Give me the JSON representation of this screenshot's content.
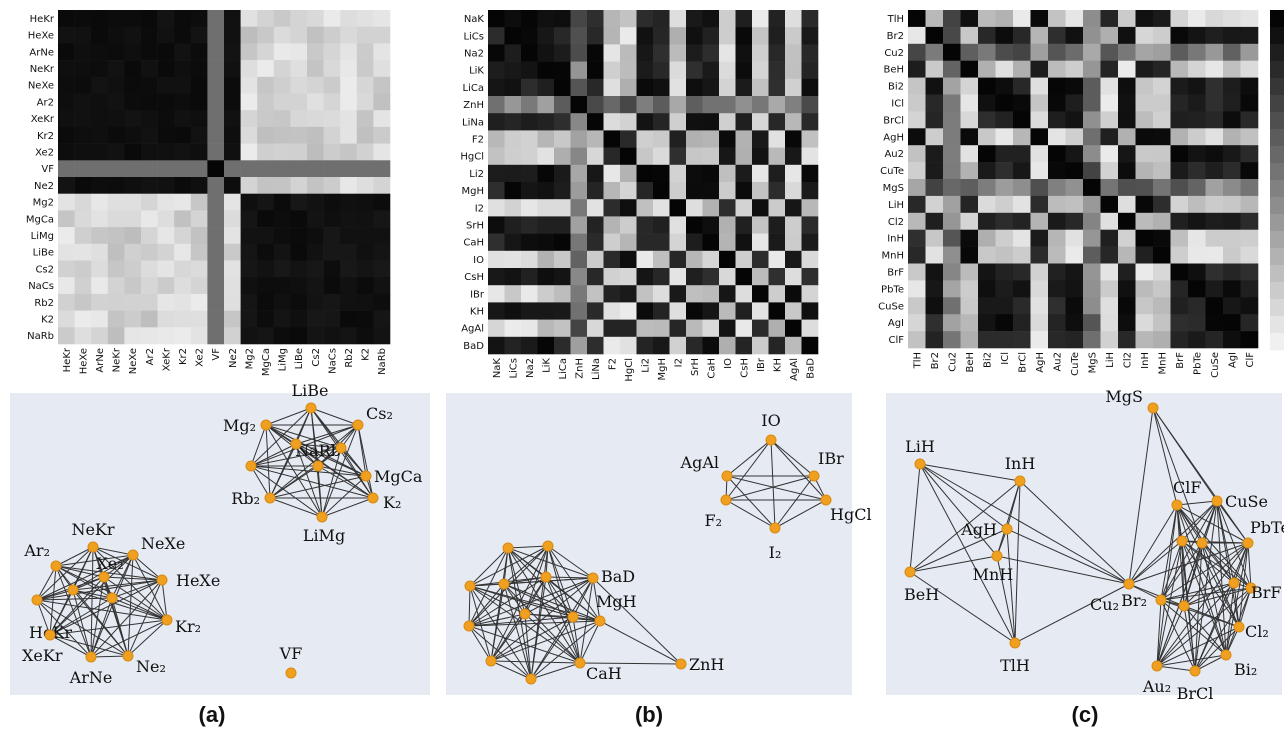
{
  "colors": {
    "panel_bg": "#e6eaf3",
    "node_fill": "#f0a020",
    "node_stroke": "#d98a10",
    "edge": "#333333",
    "cell_dark": "#050505",
    "cell_light": "#f0f0f0"
  },
  "panel_labels": [
    "(a)",
    "(b)",
    "(c)"
  ],
  "chart_data": [
    {
      "type": "heatmap",
      "panel": "(a)",
      "labels": [
        "HeKr",
        "HeXe",
        "ArNe",
        "NeKr",
        "NeXe",
        "Ar2",
        "XeKr",
        "Kr2",
        "Xe2",
        "VF",
        "Ne2",
        "Mg2",
        "MgCa",
        "LiMg",
        "LiBe",
        "Cs2",
        "NaCs",
        "Rb2",
        "K2",
        "NaRb"
      ],
      "clusters": [
        {
          "members": [
            "HeKr",
            "HeXe",
            "ArNe",
            "NeKr",
            "NeXe",
            "Ar2",
            "XeKr",
            "Kr2",
            "Xe2",
            "Ne2"
          ],
          "within": 0.03,
          "vs": {
            "c2": 0.85
          }
        },
        {
          "members": [
            "Mg2",
            "MgCa",
            "LiMg",
            "LiBe",
            "Cs2",
            "NaCs",
            "Rb2",
            "K2",
            "NaRb"
          ],
          "within": 0.05
        }
      ],
      "odd_one": {
        "label": "VF",
        "cross": 0.45,
        "self": 0.0
      },
      "colorscale": "gray"
    },
    {
      "type": "heatmap",
      "panel": "(b)",
      "labels": [
        "NaK",
        "LiCs",
        "Na2",
        "LiK",
        "LiCa",
        "ZnH",
        "LiNa",
        "F2",
        "HgCl",
        "Li2",
        "MgH",
        "I2",
        "SrH",
        "CaH",
        "IO",
        "CsH",
        "IBr",
        "KH",
        "AgAl",
        "BaD"
      ],
      "group_a": [
        "NaK",
        "LiCs",
        "Na2",
        "LiK",
        "LiCa",
        "LiNa",
        "Li2",
        "MgH",
        "SrH",
        "CaH",
        "CsH",
        "KH",
        "BaD"
      ],
      "group_b": [
        "F2",
        "HgCl",
        "I2",
        "IO",
        "IBr",
        "AgAl"
      ],
      "mid": [
        "ZnH"
      ],
      "colorscale": "gray"
    },
    {
      "type": "heatmap",
      "panel": "(c)",
      "labels": [
        "TlH",
        "Br2",
        "Cu2",
        "BeH",
        "Bi2",
        "ICl",
        "BrCl",
        "AgH",
        "Au2",
        "CuTe",
        "MgS",
        "LiH",
        "Cl2",
        "InH",
        "MnH",
        "BrF",
        "PbTe",
        "CuSe",
        "AgI",
        "ClF"
      ],
      "group_a": [
        "Br2",
        "Bi2",
        "ICl",
        "BrCl",
        "Au2",
        "Cl2",
        "BrF",
        "PbTe",
        "CuSe",
        "AgI",
        "ClF",
        "CuTe"
      ],
      "group_b": [
        "TlH",
        "BeH",
        "AgH",
        "LiH",
        "InH",
        "MnH"
      ],
      "mid": [
        "Cu2",
        "MgS"
      ],
      "colorscale": "gray"
    },
    {
      "type": "network",
      "panel": "(a)",
      "nodes": [
        {
          "id": "LiBe",
          "label": "LiBe"
        },
        {
          "id": "Cs2",
          "label": "Cs₂"
        },
        {
          "id": "Mg2",
          "label": "Mg₂"
        },
        {
          "id": "NaRb",
          "label": "NaRb"
        },
        {
          "id": "MgCa",
          "label": "MgCa"
        },
        {
          "id": "Rb2",
          "label": "Rb₂"
        },
        {
          "id": "K2",
          "label": "K₂"
        },
        {
          "id": "LiMg",
          "label": "LiMg"
        },
        {
          "id": "NeKr",
          "label": "NeKr"
        },
        {
          "id": "NeXe",
          "label": "NeXe"
        },
        {
          "id": "Ar2",
          "label": "Ar₂"
        },
        {
          "id": "Xe2",
          "label": "Xe₂"
        },
        {
          "id": "HeXe",
          "label": "HeXe"
        },
        {
          "id": "HeKr",
          "label": "HeKr"
        },
        {
          "id": "Kr2",
          "label": "Kr₂"
        },
        {
          "id": "XeKr",
          "label": "XeKr"
        },
        {
          "id": "Ne2",
          "label": "Ne₂"
        },
        {
          "id": "ArNe",
          "label": "ArNe"
        },
        {
          "id": "VF",
          "label": "VF"
        },
        {
          "id": "a1",
          "label": ""
        },
        {
          "id": "a2",
          "label": ""
        },
        {
          "id": "a3",
          "label": ""
        },
        {
          "id": "a4",
          "label": ""
        },
        {
          "id": "a5",
          "label": ""
        }
      ],
      "cliques": [
        [
          "LiBe",
          "Cs2",
          "Mg2",
          "NaRb",
          "MgCa",
          "Rb2",
          "K2",
          "LiMg",
          "a1",
          "a2",
          "a3"
        ],
        [
          "NeKr",
          "NeXe",
          "Ar2",
          "Xe2",
          "HeXe",
          "HeKr",
          "Kr2",
          "XeKr",
          "Ne2",
          "ArNe",
          "a4",
          "a5"
        ]
      ],
      "extra_edges": []
    },
    {
      "type": "network",
      "panel": "(b)",
      "nodes": [
        {
          "id": "IO",
          "label": "IO"
        },
        {
          "id": "AgAl",
          "label": "AgAl"
        },
        {
          "id": "IBr",
          "label": "IBr"
        },
        {
          "id": "F2",
          "label": "F₂"
        },
        {
          "id": "HgCl",
          "label": "HgCl"
        },
        {
          "id": "I2",
          "label": "I₂"
        },
        {
          "id": "BaD",
          "label": "BaD"
        },
        {
          "id": "MgH",
          "label": "MgH"
        },
        {
          "id": "ZnH",
          "label": "ZnH"
        },
        {
          "id": "CaH",
          "label": "CaH"
        },
        {
          "id": "b1",
          "label": ""
        },
        {
          "id": "b2",
          "label": ""
        },
        {
          "id": "b3",
          "label": ""
        },
        {
          "id": "b4",
          "label": ""
        },
        {
          "id": "b5",
          "label": ""
        },
        {
          "id": "b6",
          "label": ""
        },
        {
          "id": "b7",
          "label": ""
        },
        {
          "id": "b8",
          "label": ""
        },
        {
          "id": "b9",
          "label": ""
        },
        {
          "id": "b10",
          "label": ""
        }
      ],
      "cliques": [
        [
          "IO",
          "AgAl",
          "IBr",
          "F2",
          "HgCl",
          "I2"
        ],
        [
          "BaD",
          "MgH",
          "CaH",
          "b1",
          "b2",
          "b3",
          "b4",
          "b5",
          "b6",
          "b7",
          "b8",
          "b9",
          "b10"
        ]
      ],
      "extra_edges": [
        [
          "ZnH",
          "MgH"
        ],
        [
          "ZnH",
          "BaD"
        ],
        [
          "ZnH",
          "CaH"
        ]
      ]
    },
    {
      "type": "network",
      "panel": "(c)",
      "nodes": [
        {
          "id": "MgS",
          "label": "MgS"
        },
        {
          "id": "LiH",
          "label": "LiH"
        },
        {
          "id": "InH",
          "label": "InH"
        },
        {
          "id": "ClF",
          "label": "ClF"
        },
        {
          "id": "CuSe",
          "label": "CuSe"
        },
        {
          "id": "AgH",
          "label": "AgH"
        },
        {
          "id": "PbTe",
          "label": "PbTe"
        },
        {
          "id": "BeH",
          "label": "BeH"
        },
        {
          "id": "MnH",
          "label": "MnH"
        },
        {
          "id": "Cu2",
          "label": "Cu₂"
        },
        {
          "id": "BrF",
          "label": "BrF"
        },
        {
          "id": "Br2",
          "label": "Br₂"
        },
        {
          "id": "Cl2",
          "label": "Cl₂"
        },
        {
          "id": "TlH",
          "label": "TlH"
        },
        {
          "id": "Au2",
          "label": "Au₂"
        },
        {
          "id": "Bi2",
          "label": "Bi₂"
        },
        {
          "id": "BrCl",
          "label": "BrCl"
        },
        {
          "id": "c1",
          "label": ""
        },
        {
          "id": "c2",
          "label": ""
        },
        {
          "id": "c3",
          "label": ""
        },
        {
          "id": "c4",
          "label": ""
        }
      ],
      "cliques": [
        [
          "LiH",
          "InH",
          "AgH",
          "BeH",
          "MnH",
          "TlH"
        ],
        [
          "ClF",
          "CuSe",
          "PbTe",
          "BrF",
          "Br2",
          "Cl2",
          "Au2",
          "Bi2",
          "BrCl",
          "c1",
          "c2",
          "c3",
          "c4"
        ]
      ],
      "extra_edges": [
        [
          "MgS",
          "ClF"
        ],
        [
          "MgS",
          "CuSe"
        ],
        [
          "MgS",
          "Cu2"
        ],
        [
          "MgS",
          "PbTe"
        ],
        [
          "MgS",
          "c2"
        ],
        [
          "Cu2",
          "InH"
        ],
        [
          "Cu2",
          "AgH"
        ],
        [
          "Cu2",
          "MnH"
        ],
        [
          "Cu2",
          "TlH"
        ],
        [
          "Cu2",
          "LiH"
        ],
        [
          "Cu2",
          "ClF"
        ],
        [
          "Cu2",
          "CuSe"
        ],
        [
          "Cu2",
          "Br2"
        ],
        [
          "Cu2",
          "PbTe"
        ],
        [
          "Cu2",
          "c1"
        ],
        [
          "Cu2",
          "c3"
        ]
      ]
    }
  ]
}
